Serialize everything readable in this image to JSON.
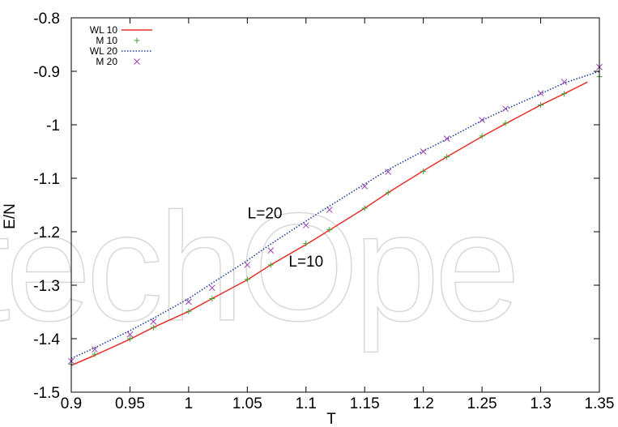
{
  "chart_data": {
    "type": "line",
    "title": "",
    "xlabel": "T",
    "ylabel": "E/N",
    "xlim": [
      0.9,
      1.35
    ],
    "ylim": [
      -1.5,
      -0.8
    ],
    "xticks": [
      0.9,
      0.95,
      1,
      1.05,
      1.1,
      1.15,
      1.2,
      1.25,
      1.3,
      1.35
    ],
    "xtick_labels": [
      "0.9",
      "0.95",
      "1",
      "1.05",
      "1.1",
      "1.15",
      "1.2",
      "1.25",
      "1.3",
      "1.35"
    ],
    "yticks": [
      -1.5,
      -1.4,
      -1.3,
      -1.2,
      -1.1,
      -1,
      -0.9,
      -0.8
    ],
    "ytick_labels": [
      "-1.5",
      "-1.4",
      "-1.3",
      "-1.2",
      "-1.1",
      "-1",
      "-0.9",
      "-0.8"
    ],
    "grid": false,
    "legend_position": "top-left",
    "watermark": "techOpe",
    "annotations": [
      {
        "text": "L=20",
        "x": 1.065,
        "y": -1.175
      },
      {
        "text": "L=10",
        "x": 1.1,
        "y": -1.265
      }
    ],
    "series": [
      {
        "name": "WL 10",
        "style": "line-solid",
        "color": "#e8302a",
        "x": [
          0.9,
          0.92,
          0.95,
          0.97,
          1.0,
          1.02,
          1.05,
          1.07,
          1.1,
          1.12,
          1.15,
          1.17,
          1.2,
          1.22,
          1.25,
          1.27,
          1.3,
          1.32,
          1.34
        ],
        "y": [
          -1.45,
          -1.431,
          -1.401,
          -1.379,
          -1.349,
          -1.325,
          -1.29,
          -1.262,
          -1.224,
          -1.197,
          -1.156,
          -1.127,
          -1.086,
          -1.06,
          -1.022,
          -0.998,
          -0.963,
          -0.942,
          -0.92
        ]
      },
      {
        "name": "M 10",
        "style": "marker-plus",
        "color": "#3fa535",
        "x": [
          0.9,
          0.92,
          0.95,
          0.97,
          1.0,
          1.02,
          1.05,
          1.07,
          1.1,
          1.12,
          1.15,
          1.17,
          1.2,
          1.22,
          1.25,
          1.27,
          1.3,
          1.32,
          1.35
        ],
        "y": [
          -1.448,
          -1.429,
          -1.4,
          -1.379,
          -1.349,
          -1.325,
          -1.289,
          -1.262,
          -1.222,
          -1.196,
          -1.156,
          -1.127,
          -1.087,
          -1.06,
          -1.021,
          -0.997,
          -0.963,
          -0.942,
          -0.91
        ]
      },
      {
        "name": "WL 20",
        "style": "line-dotted",
        "color": "#1f3f9e",
        "x": [
          0.9,
          0.92,
          0.95,
          0.97,
          1.0,
          1.02,
          1.05,
          1.07,
          1.1,
          1.12,
          1.15,
          1.17,
          1.2,
          1.22,
          1.25,
          1.27,
          1.3,
          1.32,
          1.35
        ],
        "y": [
          -1.437,
          -1.417,
          -1.385,
          -1.362,
          -1.325,
          -1.296,
          -1.254,
          -1.223,
          -1.18,
          -1.152,
          -1.111,
          -1.084,
          -1.049,
          -1.027,
          -0.992,
          -0.971,
          -0.942,
          -0.922,
          -0.9
        ]
      },
      {
        "name": "M 20",
        "style": "marker-x",
        "color": "#9b3fb5",
        "x": [
          0.9,
          0.92,
          0.95,
          0.97,
          1.0,
          1.02,
          1.05,
          1.07,
          1.1,
          1.12,
          1.15,
          1.17,
          1.2,
          1.22,
          1.25,
          1.27,
          1.3,
          1.32,
          1.35
        ],
        "y": [
          -1.442,
          -1.42,
          -1.392,
          -1.368,
          -1.331,
          -1.305,
          -1.262,
          -1.235,
          -1.188,
          -1.159,
          -1.115,
          -1.088,
          -1.05,
          -1.026,
          -0.991,
          -0.97,
          -0.941,
          -0.92,
          -0.892
        ]
      }
    ]
  }
}
